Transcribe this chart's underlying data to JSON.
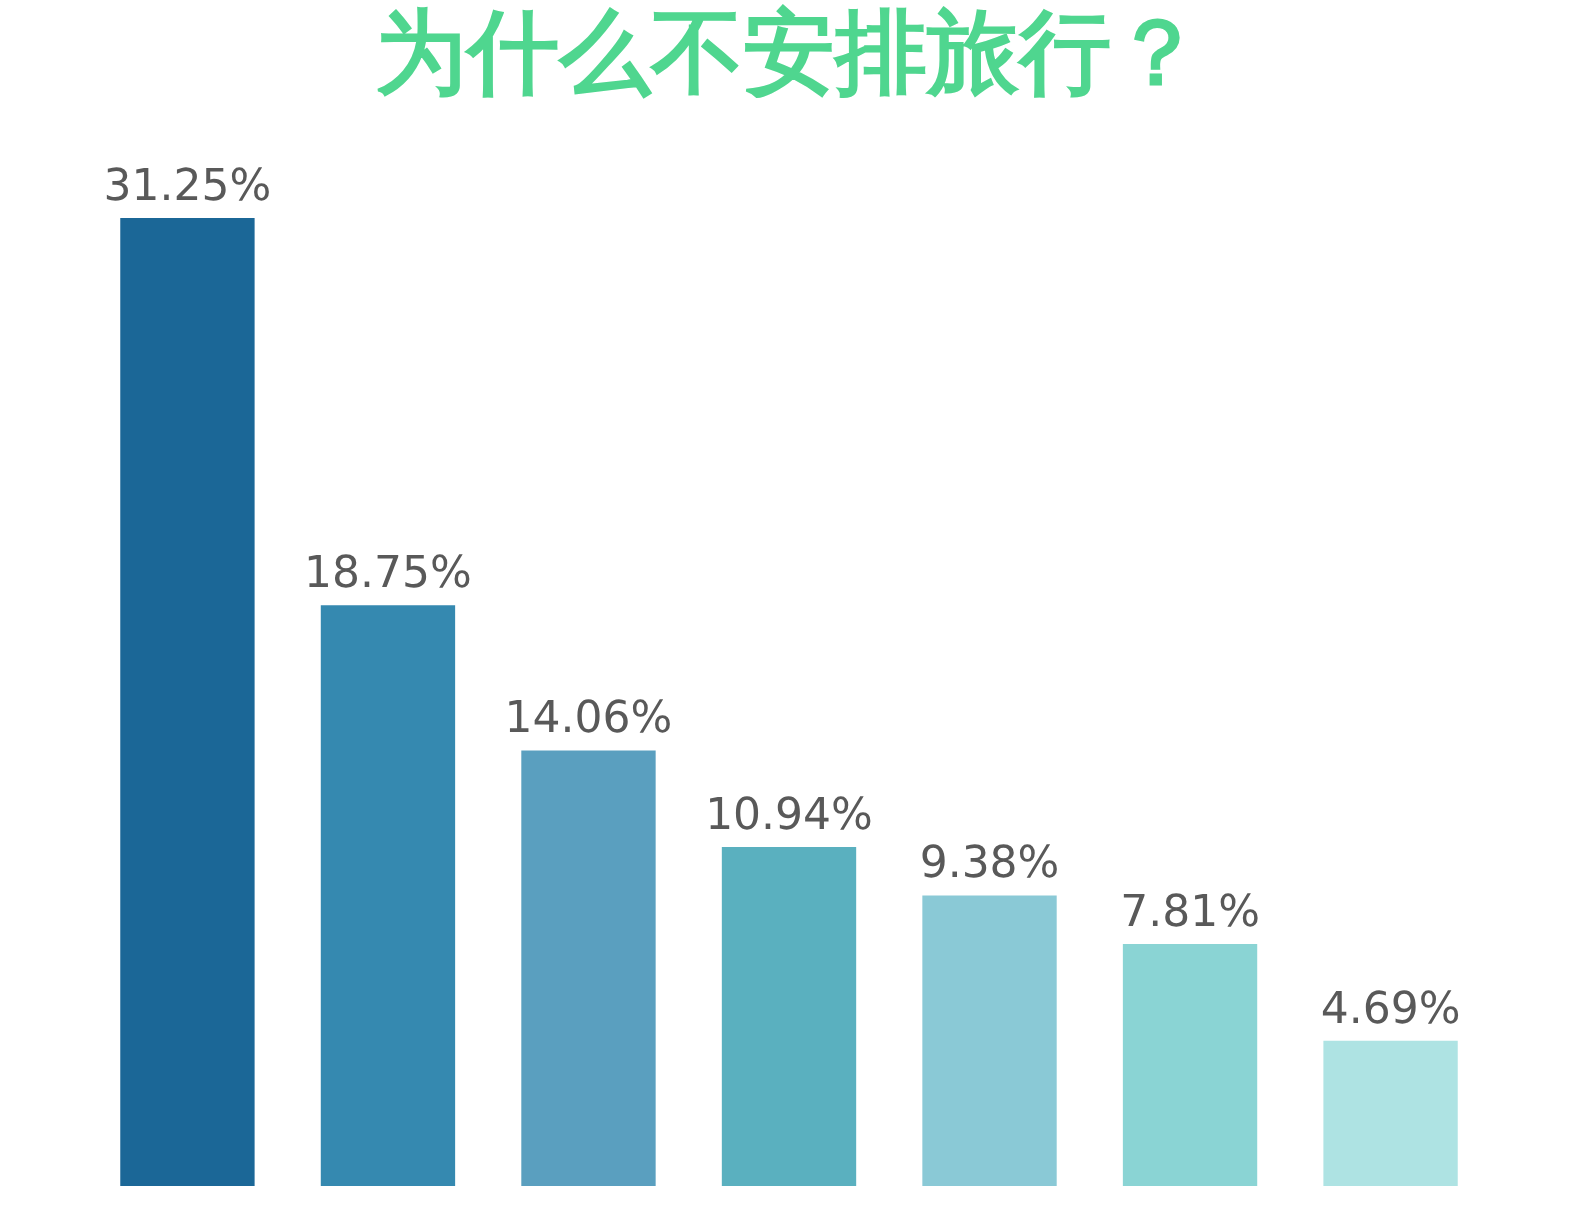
{
  "chart_data": {
    "type": "bar",
    "title": "为什么不安排旅行？",
    "categories": [
      null,
      null,
      null,
      null,
      null,
      null,
      null
    ],
    "values": [
      31.25,
      18.75,
      14.06,
      10.94,
      9.38,
      7.81,
      4.69
    ],
    "colors": [
      "#1b6797",
      "#3589b0",
      "#5a9fbf",
      "#5ab0bf",
      "#8ac9d6",
      "#8ad4d4",
      "#aee3e3"
    ],
    "value_labels": [
      "31.25%",
      "18.75%",
      "14.06%",
      "10.94%",
      "9.38%",
      "7.81%",
      "4.69%"
    ],
    "tick_labels": false
  }
}
